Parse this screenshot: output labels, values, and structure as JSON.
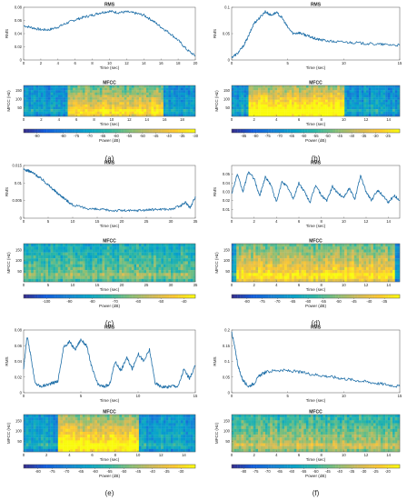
{
  "chart_data": [
    {
      "panel": "(a)",
      "rms": {
        "type": "line",
        "title": "RMS",
        "xlabel": "Time (sec)",
        "ylabel": "RMS",
        "xlim": [
          0,
          20
        ],
        "ylim": [
          0,
          0.08
        ],
        "xticks": [
          0,
          2,
          4,
          6,
          8,
          10,
          12,
          14,
          16,
          18,
          20
        ],
        "yticks": [
          0,
          0.02,
          0.04,
          0.06,
          0.08
        ],
        "yticklabels": [
          "0",
          "0.02",
          "0.04",
          "0.06",
          "0.08"
        ],
        "x": [
          0,
          1,
          2,
          3,
          4,
          5,
          6,
          7,
          8,
          9,
          10,
          11,
          12,
          13,
          14,
          15,
          16,
          17,
          18,
          19,
          20
        ],
        "y": [
          0.052,
          0.049,
          0.046,
          0.046,
          0.05,
          0.056,
          0.061,
          0.065,
          0.068,
          0.072,
          0.074,
          0.072,
          0.073,
          0.071,
          0.068,
          0.06,
          0.05,
          0.041,
          0.03,
          0.016,
          0.006
        ]
      },
      "mfcc": {
        "type": "heatmap",
        "title": "MFCC",
        "xlabel": "Time (sec)",
        "ylabel": "MFCC (Hz)",
        "xlim": [
          0,
          19.5
        ],
        "xticks": [
          0,
          2,
          4,
          6,
          8,
          10,
          12,
          14,
          16,
          18
        ],
        "yticks": [
          50,
          100,
          150
        ],
        "ylim": [
          0,
          180
        ],
        "high_energy_region": {
          "x": [
            5,
            16
          ],
          "level": 0.5
        },
        "colorbar": {
          "label": "Power (dB)",
          "ticks": [
            -90,
            -80,
            -75,
            -70,
            -65,
            -60,
            -55,
            -50,
            -45,
            -40,
            -35,
            -30
          ],
          "min": -95,
          "max": -30
        }
      },
      "caption": "(a)"
    },
    {
      "panel": "(b)",
      "rms": {
        "type": "line",
        "title": "RMS",
        "xlabel": "Time (sec)",
        "ylabel": "RMS",
        "xlim": [
          0,
          15
        ],
        "ylim": [
          0,
          0.1
        ],
        "xticks": [
          0,
          5,
          10,
          15
        ],
        "yticks": [
          0,
          0.05,
          0.1
        ],
        "yticklabels": [
          "0",
          "0.05",
          "0.1"
        ],
        "x": [
          0,
          0.5,
          1,
          1.5,
          2,
          2.5,
          3,
          3.5,
          4,
          4.5,
          5,
          5.5,
          6,
          6.5,
          7,
          7.5,
          8,
          9,
          10,
          11,
          12,
          13,
          14,
          15
        ],
        "y": [
          0.005,
          0.012,
          0.025,
          0.045,
          0.07,
          0.08,
          0.092,
          0.085,
          0.09,
          0.08,
          0.062,
          0.05,
          0.052,
          0.048,
          0.044,
          0.04,
          0.038,
          0.035,
          0.034,
          0.033,
          0.031,
          0.03,
          0.029,
          0.028
        ]
      },
      "mfcc": {
        "type": "heatmap",
        "title": "MFCC",
        "xlabel": "Time (sec)",
        "ylabel": "MFCC (Hz)",
        "xlim": [
          0,
          15
        ],
        "xticks": [
          0,
          2,
          4,
          6,
          8,
          10,
          12,
          14
        ],
        "yticks": [
          50,
          100,
          150
        ],
        "ylim": [
          0,
          180
        ],
        "high_energy_region": {
          "x": [
            1.5,
            10
          ],
          "level": 0.65
        },
        "colorbar": {
          "label": "Power (dB)",
          "ticks": [
            -85,
            -80,
            -75,
            -70,
            -65,
            -60,
            -55,
            -50,
            -45,
            -40,
            -35,
            -30,
            -25
          ],
          "min": -90,
          "max": -20
        }
      },
      "caption": "(b)"
    },
    {
      "panel": "(c)",
      "rms": {
        "type": "line",
        "title": "RMS",
        "xlabel": "Time (sec)",
        "ylabel": "RMS",
        "xlim": [
          0,
          35
        ],
        "ylim": [
          0,
          0.015
        ],
        "xticks": [
          0,
          5,
          10,
          15,
          20,
          25,
          30,
          35
        ],
        "yticks": [
          0,
          0.005,
          0.01,
          0.015
        ],
        "yticklabels": [
          "0",
          "0.005",
          "0.01",
          "0.015"
        ],
        "x": [
          0,
          1,
          2,
          3,
          4,
          5,
          6,
          7,
          8,
          9,
          10,
          12,
          14,
          16,
          18,
          20,
          22,
          24,
          26,
          28,
          30,
          32,
          33,
          34,
          35
        ],
        "y": [
          0.0138,
          0.0135,
          0.0128,
          0.0118,
          0.0108,
          0.0095,
          0.0082,
          0.007,
          0.006,
          0.0048,
          0.0038,
          0.003,
          0.0026,
          0.0024,
          0.0022,
          0.0022,
          0.0021,
          0.0023,
          0.0024,
          0.0026,
          0.0025,
          0.0035,
          0.0045,
          0.003,
          0.0062
        ]
      },
      "mfcc": {
        "type": "heatmap",
        "title": "MFCC",
        "xlabel": "Time (sec)",
        "ylabel": "MFCC (Hz)",
        "xlim": [
          0,
          35
        ],
        "xticks": [
          0,
          5,
          10,
          15,
          20,
          25,
          30,
          35
        ],
        "yticks": [
          50,
          100,
          150
        ],
        "ylim": [
          0,
          180
        ],
        "high_energy_region": {
          "x": [
            0,
            35
          ],
          "level": 0.2
        },
        "colorbar": {
          "label": "Power (dB)",
          "ticks": [
            -100,
            -90,
            -80,
            -70,
            -60,
            -50,
            -40
          ],
          "min": -110,
          "max": -35
        }
      },
      "caption": "(c)"
    },
    {
      "panel": "(d)",
      "rms": {
        "type": "line",
        "title": "RMS",
        "xlabel": "Time (sec)",
        "ylabel": "RMS",
        "xlim": [
          0,
          15
        ],
        "ylim": [
          0,
          0.06
        ],
        "xticks": [
          0,
          2,
          4,
          6,
          8,
          10,
          12,
          14
        ],
        "yticks": [
          0.01,
          0.02,
          0.03,
          0.04,
          0.05
        ],
        "yticklabels": [
          "0.01",
          "0.02",
          "0.03",
          "0.04",
          "0.05"
        ],
        "x": [
          0,
          0.5,
          1,
          1.5,
          2,
          2.5,
          3,
          3.5,
          4,
          4.5,
          5,
          5.5,
          6,
          6.5,
          7,
          7.5,
          8,
          8.5,
          9,
          9.5,
          10,
          10.5,
          11,
          11.5,
          12,
          12.5,
          13,
          13.5,
          14,
          14.5,
          15
        ],
        "y": [
          0.028,
          0.05,
          0.03,
          0.053,
          0.045,
          0.025,
          0.047,
          0.038,
          0.018,
          0.042,
          0.035,
          0.022,
          0.04,
          0.03,
          0.018,
          0.038,
          0.026,
          0.02,
          0.036,
          0.028,
          0.024,
          0.034,
          0.022,
          0.048,
          0.03,
          0.02,
          0.032,
          0.026,
          0.018,
          0.026,
          0.02
        ]
      },
      "mfcc": {
        "type": "heatmap",
        "title": "MFCC",
        "xlabel": "Time (sec)",
        "ylabel": "MFCC (Hz)",
        "xlim": [
          0,
          15
        ],
        "xticks": [
          0,
          2,
          4,
          6,
          8,
          10,
          12,
          14
        ],
        "yticks": [
          50,
          100,
          150
        ],
        "ylim": [
          0,
          180
        ],
        "high_energy_region": {
          "x": [
            0.5,
            14.5
          ],
          "level": 0.5
        },
        "colorbar": {
          "label": "Power (dB)",
          "ticks": [
            -80,
            -75,
            -70,
            -65,
            -60,
            -55,
            -50,
            -45,
            -40,
            -35
          ],
          "min": -85,
          "max": -30
        }
      },
      "caption": "(d)"
    },
    {
      "panel": "(e)",
      "rms": {
        "type": "line",
        "title": "RMS",
        "xlabel": "Time (sec)",
        "ylabel": "RMS",
        "xlim": [
          0,
          15
        ],
        "ylim": [
          0,
          0.08
        ],
        "xticks": [
          0,
          5,
          10,
          15
        ],
        "yticks": [
          0,
          0.02,
          0.04,
          0.06,
          0.08
        ],
        "yticklabels": [
          "0",
          "0.02",
          "0.04",
          "0.06",
          "0.08"
        ],
        "x": [
          0,
          0.3,
          0.6,
          1,
          1.5,
          2,
          2.5,
          3,
          3.5,
          4,
          4.5,
          5,
          5.5,
          6,
          6.5,
          7,
          7.5,
          8,
          8.5,
          9,
          9.5,
          10,
          10.5,
          11,
          11.5,
          12,
          12.5,
          13,
          13.5,
          14,
          14.5,
          15
        ],
        "y": [
          0.03,
          0.072,
          0.05,
          0.012,
          0.008,
          0.01,
          0.012,
          0.015,
          0.058,
          0.065,
          0.055,
          0.068,
          0.06,
          0.03,
          0.01,
          0.008,
          0.01,
          0.04,
          0.028,
          0.045,
          0.03,
          0.05,
          0.04,
          0.055,
          0.012,
          0.008,
          0.007,
          0.009,
          0.008,
          0.03,
          0.018,
          0.035
        ]
      },
      "mfcc": {
        "type": "heatmap",
        "title": "MFCC",
        "xlabel": "Time (sec)",
        "ylabel": "MFCC (Hz)",
        "xlim": [
          0,
          15
        ],
        "xticks": [
          0,
          2,
          4,
          6,
          8,
          10,
          12,
          14
        ],
        "yticks": [
          50,
          100,
          150
        ],
        "ylim": [
          0,
          180
        ],
        "high_energy_region": {
          "x": [
            3,
            10
          ],
          "level": 0.6
        },
        "colorbar": {
          "label": "Power (dB)",
          "ticks": [
            -80,
            -75,
            -70,
            -65,
            -60,
            -55,
            -50,
            -45,
            -40,
            -35,
            -30
          ],
          "min": -85,
          "max": -25
        }
      },
      "caption": "(e)"
    },
    {
      "panel": "(f)",
      "rms": {
        "type": "line",
        "title": "RMS",
        "xlabel": "Time (sec)",
        "ylabel": "RMS",
        "xlim": [
          0,
          15
        ],
        "ylim": [
          0,
          0.2
        ],
        "xticks": [
          0,
          5,
          10,
          15
        ],
        "yticks": [
          0,
          0.05,
          0.1,
          0.15,
          0.2
        ],
        "yticklabels": [
          "0",
          "0.05",
          "0.1",
          "0.15",
          "0.2"
        ],
        "x": [
          0,
          0.3,
          0.6,
          1,
          1.5,
          2,
          2.5,
          3,
          4,
          5,
          6,
          7,
          8,
          9,
          10,
          11,
          12,
          13,
          14,
          15
        ],
        "y": [
          0.195,
          0.14,
          0.08,
          0.04,
          0.02,
          0.03,
          0.055,
          0.065,
          0.072,
          0.07,
          0.066,
          0.06,
          0.055,
          0.05,
          0.045,
          0.04,
          0.035,
          0.03,
          0.025,
          0.02
        ]
      },
      "mfcc": {
        "type": "heatmap",
        "title": "MFCC",
        "xlabel": "Time (sec)",
        "ylabel": "MFCC (Hz)",
        "xlim": [
          0,
          15
        ],
        "xticks": [
          0,
          2,
          4,
          6,
          8,
          10,
          12,
          14
        ],
        "yticks": [
          50,
          100,
          150
        ],
        "ylim": [
          0,
          180
        ],
        "high_energy_region": {
          "x": [
            0,
            15
          ],
          "level": 0.3
        },
        "colorbar": {
          "label": "Power (dB)",
          "ticks": [
            -80,
            -75,
            -70,
            -65,
            -60,
            -55,
            -50,
            -45,
            -40,
            -35,
            -30,
            -25,
            -20
          ],
          "min": -85,
          "max": -15
        }
      },
      "caption": "(f)"
    }
  ],
  "colors": {
    "line": "#1f6fa8",
    "parula": [
      "#352a87",
      "#0f5cdd",
      "#1481d6",
      "#06a4ca",
      "#2eb7a4",
      "#87bf77",
      "#d1bb59",
      "#fec832",
      "#f9fb0e"
    ]
  }
}
